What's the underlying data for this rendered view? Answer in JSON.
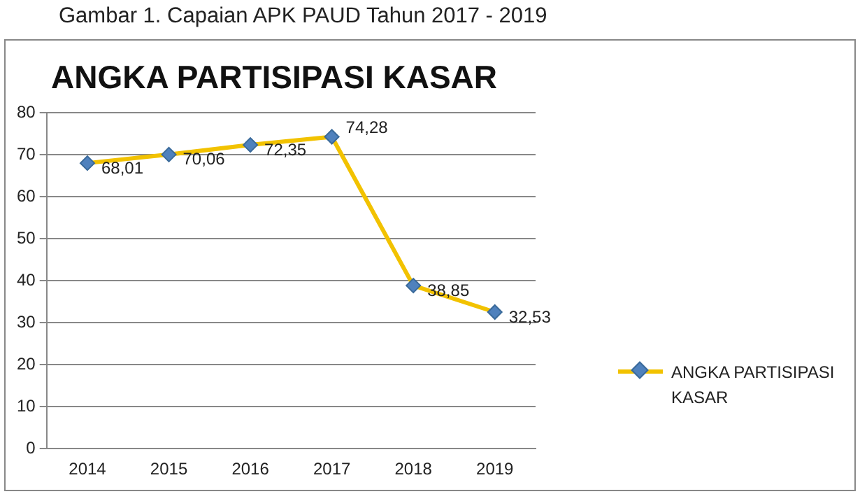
{
  "chart_data": {
    "type": "line",
    "title": "ANGKA PARTISIPASI KASAR",
    "annotations": [
      "Gambar 1. Capaian APK PAUD Tahun 2017 - 2019"
    ],
    "categories": [
      "2014",
      "2015",
      "2016",
      "2017",
      "2018",
      "2019"
    ],
    "series": [
      {
        "name": "ANGKA PARTISIPASI KASAR",
        "color": "#f2c200",
        "values": [
          68.01,
          70.06,
          72.35,
          74.28,
          38.85,
          32.53
        ],
        "value_labels": [
          "68,01",
          "70,06",
          "72,35",
          "74,28",
          "38,85",
          "32,53"
        ]
      }
    ],
    "ylim": [
      0,
      80
    ],
    "yticks": [
      0,
      10,
      20,
      30,
      40,
      50,
      60,
      70,
      80
    ],
    "grid": "y",
    "legend": "right",
    "marker": "diamond",
    "line_style": "solid"
  }
}
